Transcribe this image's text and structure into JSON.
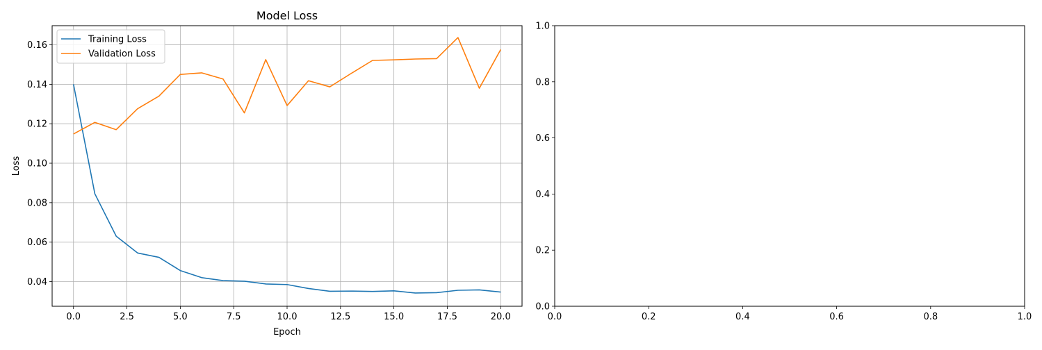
{
  "chart_data": [
    {
      "type": "line",
      "title": "Model Loss",
      "xlabel": "Epoch",
      "ylabel": "Loss",
      "xlim": [
        -1,
        21
      ],
      "ylim": [
        0.0275,
        0.1697
      ],
      "xticks": [
        0.0,
        2.5,
        5.0,
        7.5,
        10.0,
        12.5,
        15.0,
        17.5,
        20.0
      ],
      "xtick_labels": [
        "0.0",
        "2.5",
        "5.0",
        "7.5",
        "10.0",
        "12.5",
        "15.0",
        "17.5",
        "20.0"
      ],
      "yticks": [
        0.04,
        0.06,
        0.08,
        0.1,
        0.12,
        0.14,
        0.16
      ],
      "ytick_labels": [
        "0.04",
        "0.06",
        "0.08",
        "0.10",
        "0.12",
        "0.14",
        "0.16"
      ],
      "grid": true,
      "legend_position": "top-left",
      "x": [
        0,
        1,
        2,
        3,
        4,
        5,
        6,
        7,
        8,
        9,
        10,
        11,
        12,
        13,
        14,
        15,
        16,
        17,
        18,
        19,
        20
      ],
      "series": [
        {
          "name": "Training Loss",
          "color": "#1f77b4",
          "values": [
            0.14,
            0.0845,
            0.063,
            0.0545,
            0.0523,
            0.0456,
            0.042,
            0.0405,
            0.0402,
            0.0388,
            0.0385,
            0.0365,
            0.0351,
            0.0352,
            0.035,
            0.0353,
            0.0342,
            0.0344,
            0.0356,
            0.0358,
            0.0347
          ]
        },
        {
          "name": "Validation Loss",
          "color": "#ff7f0e",
          "values": [
            0.1148,
            0.1207,
            0.117,
            0.1276,
            0.134,
            0.145,
            0.1458,
            0.1427,
            0.1255,
            0.1525,
            0.1292,
            0.1418,
            0.1387,
            0.1455,
            0.1521,
            0.1524,
            0.1528,
            0.153,
            0.1637,
            0.138,
            0.1576
          ]
        }
      ]
    },
    {
      "type": "line",
      "title": "",
      "xlabel": "",
      "ylabel": "",
      "xlim": [
        0,
        1
      ],
      "ylim": [
        0,
        1
      ],
      "xticks": [
        0.0,
        0.2,
        0.4,
        0.6,
        0.8,
        1.0
      ],
      "xtick_labels": [
        "0.0",
        "0.2",
        "0.4",
        "0.6",
        "0.8",
        "1.0"
      ],
      "yticks": [
        0.0,
        0.2,
        0.4,
        0.6,
        0.8,
        1.0
      ],
      "ytick_labels": [
        "0.0",
        "0.2",
        "0.4",
        "0.6",
        "0.8",
        "1.0"
      ],
      "grid": false,
      "series": []
    }
  ]
}
